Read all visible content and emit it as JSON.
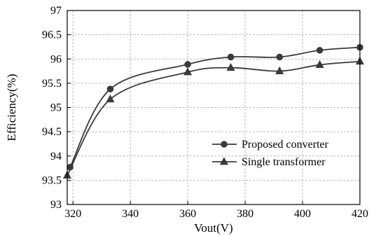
{
  "chart_data": {
    "type": "line",
    "title": "",
    "xlabel": "Vout(V)",
    "ylabel": "Efficiency(%)",
    "xlim": [
      318,
      420
    ],
    "ylim": [
      93,
      97
    ],
    "xticks": [
      320,
      340,
      360,
      380,
      400,
      420
    ],
    "yticks": [
      93,
      93.5,
      94,
      94.5,
      95,
      95.5,
      96,
      96.5,
      97
    ],
    "grid": true,
    "legend_position": "lower-right",
    "series": [
      {
        "name": "Proposed converter",
        "marker": "circle",
        "color": "#3a3a3a",
        "x": [
          319,
          333,
          360,
          375,
          392,
          406,
          420
        ],
        "y": [
          93.77,
          95.38,
          95.89,
          96.04,
          96.04,
          96.18,
          96.24
        ]
      },
      {
        "name": "Single transformer",
        "marker": "triangle",
        "color": "#3a3a3a",
        "x": [
          318,
          333,
          360,
          375,
          392,
          406,
          420
        ],
        "y": [
          93.6,
          95.17,
          95.73,
          95.82,
          95.75,
          95.88,
          95.95
        ]
      }
    ]
  }
}
